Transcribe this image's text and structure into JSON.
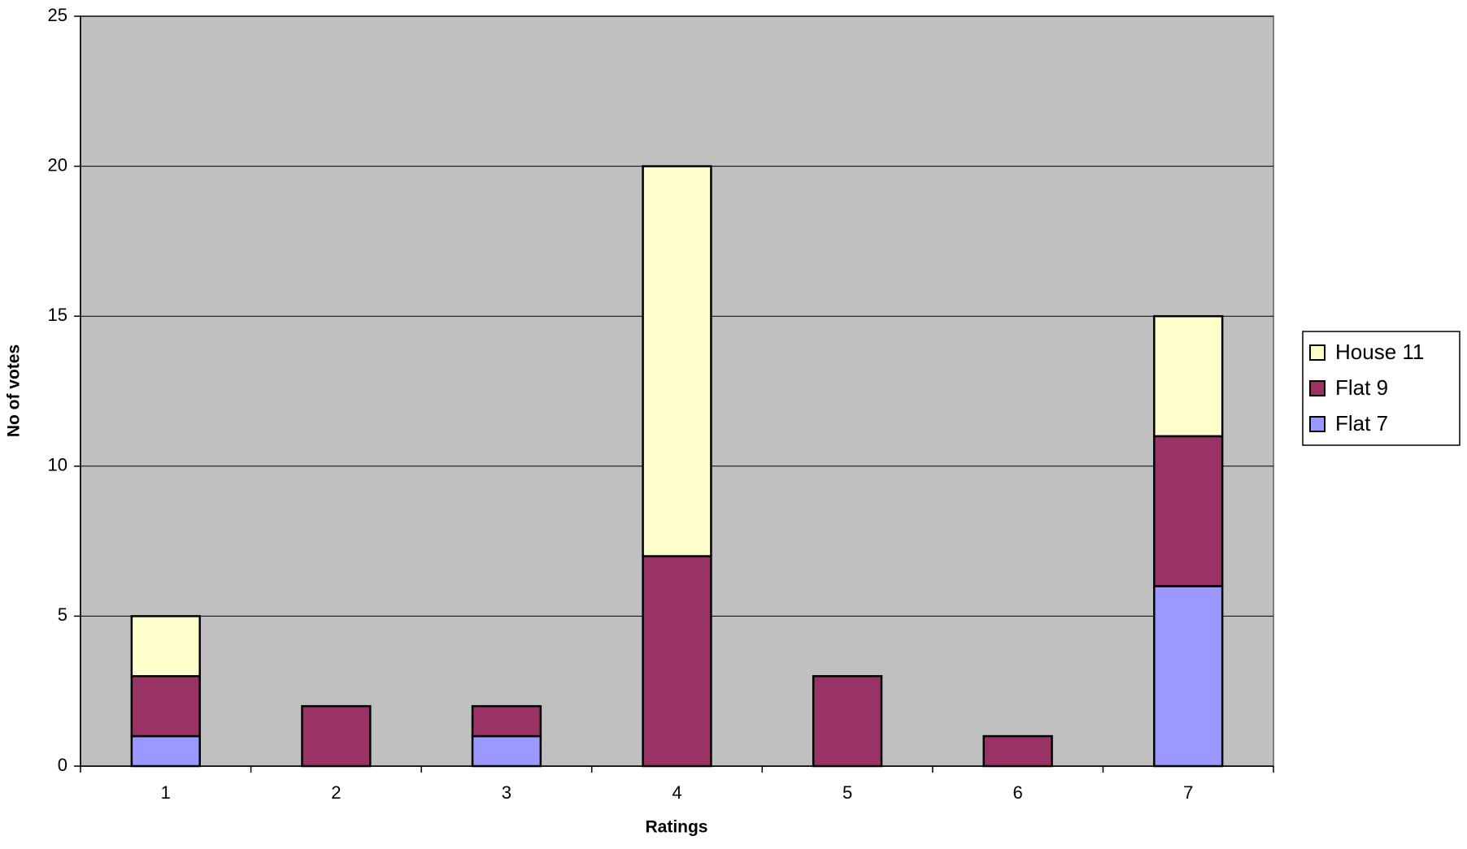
{
  "chart_data": {
    "type": "stacked_bar",
    "x_label": "Ratings",
    "y_label": "No of votes",
    "categories": [
      "1",
      "2",
      "3",
      "4",
      "5",
      "6",
      "7"
    ],
    "series": [
      {
        "name": "Flat 7",
        "color": "#9999ff",
        "values": [
          1,
          0,
          1,
          0,
          0,
          0,
          6
        ]
      },
      {
        "name": "Flat 9",
        "color": "#993366",
        "values": [
          2,
          2,
          1,
          7,
          3,
          1,
          5
        ]
      },
      {
        "name": "House 11",
        "color": "#ffffcc",
        "values": [
          2,
          0,
          0,
          13,
          0,
          0,
          4
        ]
      }
    ],
    "ylim": [
      0,
      25
    ],
    "yticks": [
      0,
      5,
      10,
      15,
      20,
      25
    ],
    "grid": true,
    "plot_background": "#c0c0c0",
    "legend": "right"
  }
}
